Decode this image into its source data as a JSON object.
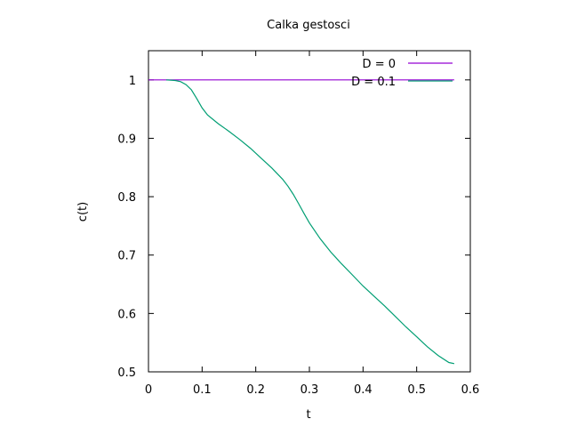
{
  "chart_data": {
    "type": "line",
    "title": "Calka gestosci",
    "xlabel": "t",
    "ylabel": "c(t)",
    "xlim": [
      0,
      0.6
    ],
    "ylim": [
      0.5,
      1.05
    ],
    "xticks": [
      0,
      0.1,
      0.2,
      0.3,
      0.4,
      0.5,
      0.6
    ],
    "yticks": [
      0.5,
      0.6,
      0.7,
      0.8,
      0.9,
      1.0
    ],
    "xtick_labels": [
      "0",
      "0.1",
      "0.2",
      "0.3",
      "0.4",
      "0.5",
      "0.6"
    ],
    "ytick_labels": [
      "0.5",
      "0.6",
      "0.7",
      "0.8",
      "0.9",
      "1"
    ],
    "grid": false,
    "legend_position": "top-right",
    "series": [
      {
        "name": "D = 0",
        "color": "#9400d3",
        "x": [
          0,
          0.57
        ],
        "y": [
          1.0,
          1.0
        ]
      },
      {
        "name": "D = 0.1",
        "color": "#009e73",
        "x": [
          0.033,
          0.05,
          0.06,
          0.07,
          0.08,
          0.09,
          0.1,
          0.11,
          0.13,
          0.15,
          0.17,
          0.19,
          0.21,
          0.23,
          0.25,
          0.26,
          0.27,
          0.28,
          0.29,
          0.3,
          0.32,
          0.34,
          0.36,
          0.38,
          0.4,
          0.42,
          0.44,
          0.46,
          0.48,
          0.5,
          0.52,
          0.54,
          0.56,
          0.57
        ],
        "y": [
          1.0,
          0.999,
          0.997,
          0.992,
          0.983,
          0.968,
          0.952,
          0.94,
          0.925,
          0.912,
          0.898,
          0.883,
          0.866,
          0.849,
          0.83,
          0.818,
          0.804,
          0.788,
          0.771,
          0.755,
          0.728,
          0.705,
          0.685,
          0.666,
          0.647,
          0.63,
          0.613,
          0.595,
          0.577,
          0.56,
          0.543,
          0.528,
          0.516,
          0.514
        ]
      }
    ]
  }
}
